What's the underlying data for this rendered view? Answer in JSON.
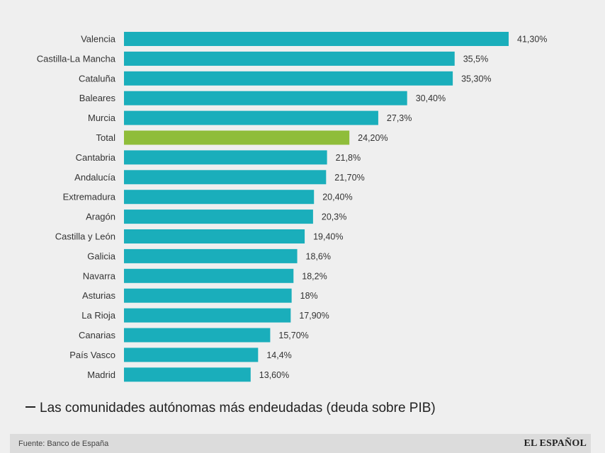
{
  "chart_data": {
    "type": "bar",
    "orientation": "horizontal",
    "title": "Las comunidades autónomas más endeudadas (deuda sobre PIB)",
    "categories": [
      "Valencia",
      "Castilla-La Mancha",
      "Cataluña",
      "Baleares",
      "Murcia",
      "Total",
      "Cantabria",
      "Andalucía",
      "Extremadura",
      "Aragón",
      "Castilla y León",
      "Galicia",
      "Navarra",
      "Asturias",
      "La Rioja",
      "Canarias",
      "País Vasco",
      "Madrid"
    ],
    "values": [
      41.3,
      35.5,
      35.3,
      30.4,
      27.3,
      24.2,
      21.8,
      21.7,
      20.4,
      20.3,
      19.4,
      18.6,
      18.2,
      18,
      17.9,
      15.7,
      14.4,
      13.6
    ],
    "value_labels": [
      "41,30%",
      "35,5%",
      "35,30%",
      "30,40%",
      "27,3%",
      "24,20%",
      "21,8%",
      "21,70%",
      "20,40%",
      "20,3%",
      "19,40%",
      "18,6%",
      "18,2%",
      "18%",
      "17,90%",
      "15,70%",
      "14,4%",
      "13,60%"
    ],
    "highlight_category": "Total",
    "colors": {
      "bar": "#1aaebb",
      "highlight": "#8fbd3a"
    },
    "xlim": [
      0,
      41.3
    ],
    "grid": false,
    "legend": "none"
  },
  "footer": {
    "source": "Fuente: Banco de España",
    "brand": "EL ESPAÑOL"
  }
}
